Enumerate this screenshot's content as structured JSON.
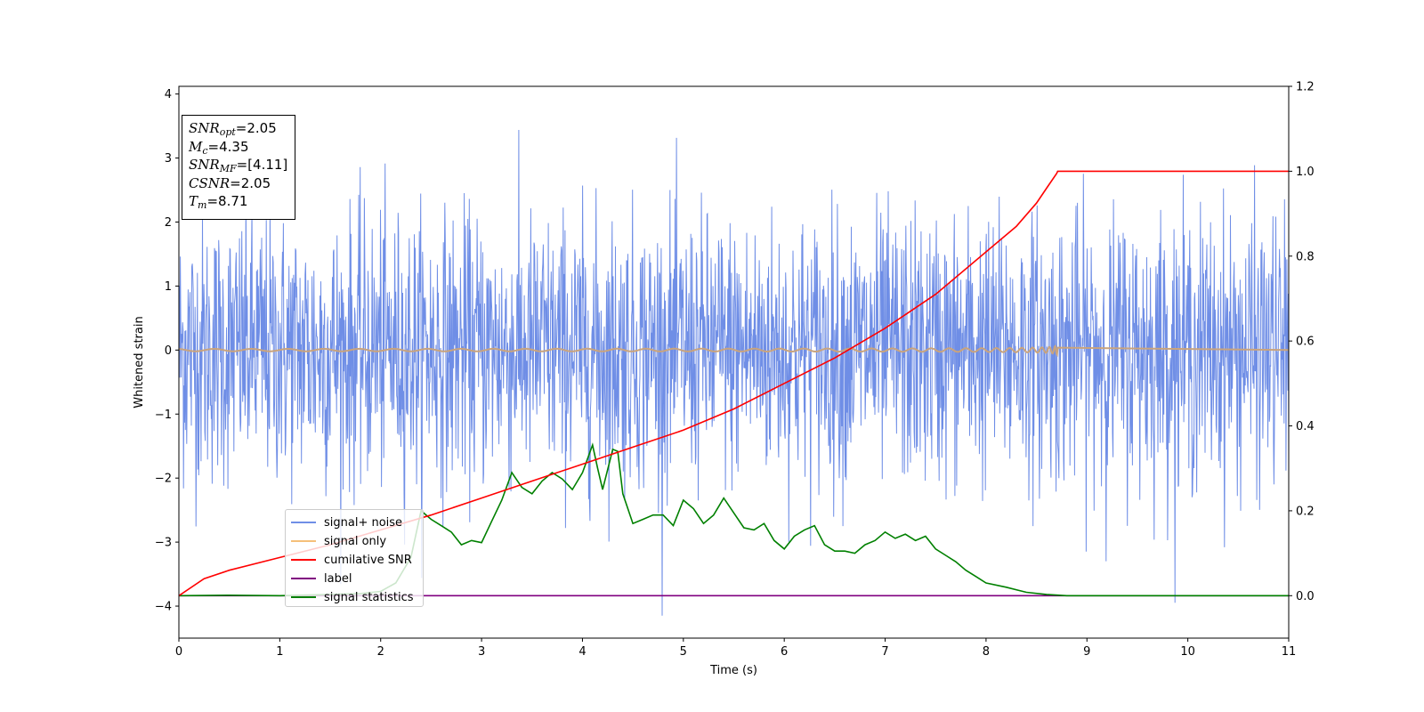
{
  "chart_data": {
    "type": "line",
    "xlabel": "Time (s)",
    "ylabel": "Whitened strain",
    "xlim": [
      0,
      11
    ],
    "ylim": [
      -4.5,
      4.12
    ],
    "y2lim": [
      -0.1,
      1.2
    ],
    "xticks": [
      "0",
      "1",
      "2",
      "3",
      "4",
      "5",
      "6",
      "7",
      "8",
      "9",
      "10",
      "11"
    ],
    "yticks": [
      "4",
      "3",
      "2",
      "1",
      "0",
      "−1",
      "−2",
      "−3",
      "−4"
    ],
    "y2ticks": [
      "1.2",
      "1.0",
      "0.8",
      "0.6",
      "0.4",
      "0.2",
      "0.0"
    ],
    "grid": false,
    "legend_position": "lower-left",
    "annotation": {
      "snr_opt": "=2.05",
      "mc": "=4.35",
      "snr_mf": "=[4.11]",
      "csnr": "=2.05",
      "tm": "=8.71"
    },
    "series": [
      {
        "name": "signal+ noise",
        "color": "#6f8ee6",
        "axis": "left",
        "description": "whitened noise, approx. Gaussian with unit std, 0-11 s",
        "envelope_max": 3.7,
        "envelope_min": -4.15
      },
      {
        "name": "signal only",
        "color": "#f5c07a",
        "axis": "left",
        "description": "chirp with amplitude rising to ~0.2 at merger",
        "merger_time": 8.71,
        "peak_amplitude": 0.2
      },
      {
        "name": "cumilative SNR",
        "color": "#ff0000",
        "axis": "right",
        "x": [
          0,
          0.25,
          0.5,
          1,
          1.5,
          2,
          2.5,
          3,
          3.5,
          4,
          4.5,
          5,
          5.5,
          6,
          6.5,
          7,
          7.5,
          8,
          8.3,
          8.5,
          8.6,
          8.7,
          8.71,
          11
        ],
        "values": [
          0,
          0.04,
          0.06,
          0.09,
          0.12,
          0.155,
          0.19,
          0.23,
          0.27,
          0.31,
          0.35,
          0.39,
          0.44,
          0.5,
          0.56,
          0.63,
          0.71,
          0.81,
          0.87,
          0.925,
          0.96,
          0.995,
          1.0,
          1.0
        ]
      },
      {
        "name": "label",
        "color": "#800080",
        "axis": "right",
        "x": [
          0,
          11
        ],
        "values": [
          0,
          0
        ]
      },
      {
        "name": "signal statistics",
        "color": "#008000",
        "axis": "right",
        "x": [
          0,
          0.5,
          1,
          1.5,
          1.8,
          2,
          2.15,
          2.3,
          2.4,
          2.5,
          2.6,
          2.7,
          2.8,
          2.9,
          3.0,
          3.1,
          3.2,
          3.3,
          3.4,
          3.5,
          3.6,
          3.7,
          3.8,
          3.9,
          4.0,
          4.1,
          4.15,
          4.2,
          4.3,
          4.35,
          4.4,
          4.5,
          4.6,
          4.7,
          4.8,
          4.9,
          5.0,
          5.1,
          5.2,
          5.3,
          5.4,
          5.5,
          5.6,
          5.7,
          5.8,
          5.9,
          6.0,
          6.1,
          6.2,
          6.3,
          6.4,
          6.5,
          6.6,
          6.7,
          6.8,
          6.9,
          7.0,
          7.1,
          7.2,
          7.3,
          7.4,
          7.5,
          7.6,
          7.7,
          7.8,
          7.9,
          8.0,
          8.2,
          8.4,
          8.6,
          8.8,
          9,
          10,
          11
        ],
        "values": [
          0,
          0.001,
          0.0,
          0.003,
          0.005,
          0.01,
          0.03,
          0.09,
          0.2,
          0.18,
          0.165,
          0.15,
          0.12,
          0.13,
          0.125,
          0.175,
          0.225,
          0.29,
          0.255,
          0.24,
          0.27,
          0.29,
          0.275,
          0.25,
          0.29,
          0.355,
          0.3,
          0.25,
          0.345,
          0.34,
          0.24,
          0.17,
          0.18,
          0.19,
          0.19,
          0.165,
          0.225,
          0.205,
          0.17,
          0.19,
          0.23,
          0.195,
          0.16,
          0.155,
          0.17,
          0.13,
          0.11,
          0.14,
          0.155,
          0.165,
          0.12,
          0.105,
          0.105,
          0.1,
          0.12,
          0.13,
          0.15,
          0.135,
          0.145,
          0.13,
          0.14,
          0.11,
          0.095,
          0.08,
          0.06,
          0.045,
          0.03,
          0.02,
          0.008,
          0.003,
          0.0,
          0.0,
          0.0,
          0.0
        ]
      }
    ]
  }
}
